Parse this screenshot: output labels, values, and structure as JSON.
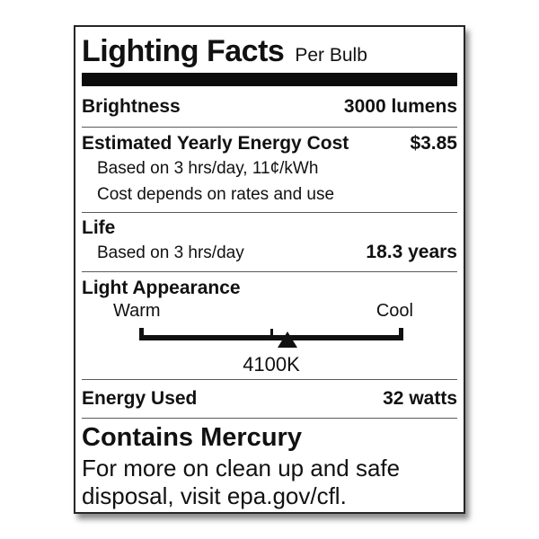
{
  "label": {
    "title": "Lighting Facts",
    "subtitle": "Per Bulb",
    "brightness": {
      "label": "Brightness",
      "value": "3000 lumens"
    },
    "energy_cost": {
      "label": "Estimated Yearly Energy Cost",
      "value": "$3.85",
      "note_basis": "Based on 3 hrs/day, 11¢/kWh",
      "note_rates": "Cost depends on rates and use"
    },
    "life": {
      "label": "Life",
      "basis": "Based on 3 hrs/day",
      "value": "18.3 years"
    },
    "light_appearance": {
      "label": "Light Appearance",
      "warm_label": "Warm",
      "cool_label": "Cool",
      "value": "4100K",
      "marker_position_pct": 56,
      "midpoint_tick_pct": 50
    },
    "energy_used": {
      "label": "Energy Used",
      "value": "32 watts"
    },
    "mercury": {
      "title": "Contains Mercury",
      "note_lines": [
        "For more on clean up and safe",
        "disposal, visit epa.gov/cfl."
      ]
    },
    "colors": {
      "ink": "#111111",
      "divider": "#5a5a5a",
      "header_bar": "#0b0b0b",
      "card_background": "#ffffff"
    }
  }
}
